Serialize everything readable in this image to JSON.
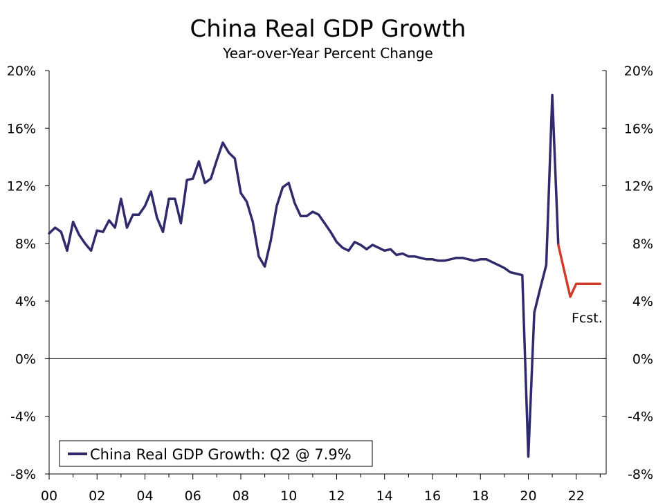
{
  "chart_data": {
    "type": "line",
    "title": "China Real GDP Growth",
    "subtitle": "Year-over-Year Percent Change",
    "xlabel": "",
    "ylabel": "",
    "ylim": [
      -8,
      20
    ],
    "yticks": [
      "20%",
      "16%",
      "12%",
      "8%",
      "4%",
      "0%",
      "-4%",
      "-8%"
    ],
    "ytick_values": [
      20,
      16,
      12,
      8,
      4,
      0,
      -4,
      -8
    ],
    "xlim": [
      2000,
      2023.25
    ],
    "xticks": [
      "00",
      "02",
      "04",
      "06",
      "08",
      "10",
      "12",
      "14",
      "16",
      "18",
      "20",
      "22"
    ],
    "xtick_values": [
      2000,
      2002,
      2004,
      2006,
      2008,
      2010,
      2012,
      2014,
      2016,
      2018,
      2020,
      2022
    ],
    "legend": "China Real GDP Growth: Q2 @ 7.9%",
    "legend_position": "bottom-left",
    "annotation": "Fcst.",
    "colors": {
      "actual": "#2e2a6b",
      "forecast": "#d23a2a"
    },
    "series": [
      {
        "name": "China Real GDP Growth",
        "color": "#2e2a6b",
        "x": [
          2000.0,
          2000.25,
          2000.5,
          2000.75,
          2001.0,
          2001.25,
          2001.5,
          2001.75,
          2002.0,
          2002.25,
          2002.5,
          2002.75,
          2003.0,
          2003.25,
          2003.5,
          2003.75,
          2004.0,
          2004.25,
          2004.5,
          2004.75,
          2005.0,
          2005.25,
          2005.5,
          2005.75,
          2006.0,
          2006.25,
          2006.5,
          2006.75,
          2007.0,
          2007.25,
          2007.5,
          2007.75,
          2008.0,
          2008.25,
          2008.5,
          2008.75,
          2009.0,
          2009.25,
          2009.5,
          2009.75,
          2010.0,
          2010.25,
          2010.5,
          2010.75,
          2011.0,
          2011.25,
          2011.5,
          2011.75,
          2012.0,
          2012.25,
          2012.5,
          2012.75,
          2013.0,
          2013.25,
          2013.5,
          2013.75,
          2014.0,
          2014.25,
          2014.5,
          2014.75,
          2015.0,
          2015.25,
          2015.5,
          2015.75,
          2016.0,
          2016.25,
          2016.5,
          2016.75,
          2017.0,
          2017.25,
          2017.5,
          2017.75,
          2018.0,
          2018.25,
          2018.5,
          2018.75,
          2019.0,
          2019.25,
          2019.5,
          2019.75,
          2020.0,
          2020.25,
          2020.5,
          2020.75,
          2021.0,
          2021.25
        ],
        "values": [
          8.7,
          9.1,
          8.8,
          7.5,
          9.5,
          8.6,
          8.0,
          7.5,
          8.9,
          8.8,
          9.6,
          9.1,
          11.1,
          9.1,
          10.0,
          10.0,
          10.6,
          11.6,
          9.8,
          8.8,
          11.1,
          11.1,
          9.4,
          12.4,
          12.5,
          13.7,
          12.2,
          12.5,
          13.8,
          15.0,
          14.3,
          13.9,
          11.5,
          10.9,
          9.5,
          7.1,
          6.4,
          8.2,
          10.6,
          11.9,
          12.2,
          10.8,
          9.9,
          9.9,
          10.2,
          10.0,
          9.4,
          8.8,
          8.1,
          7.7,
          7.5,
          8.1,
          7.9,
          7.6,
          7.9,
          7.7,
          7.5,
          7.6,
          7.2,
          7.3,
          7.1,
          7.1,
          7.0,
          6.9,
          6.9,
          6.8,
          6.8,
          6.9,
          7.0,
          7.0,
          6.9,
          6.8,
          6.9,
          6.9,
          6.7,
          6.5,
          6.3,
          6.0,
          5.9,
          5.8,
          -6.8,
          3.2,
          4.9,
          6.5,
          18.3,
          7.9
        ]
      },
      {
        "name": "Forecast",
        "color": "#d23a2a",
        "x": [
          2021.25,
          2021.5,
          2021.75,
          2022.0,
          2022.25,
          2022.5,
          2022.75,
          2023.0
        ],
        "values": [
          7.9,
          6.1,
          4.3,
          5.2,
          5.2,
          5.2,
          5.2,
          5.2
        ]
      }
    ]
  }
}
